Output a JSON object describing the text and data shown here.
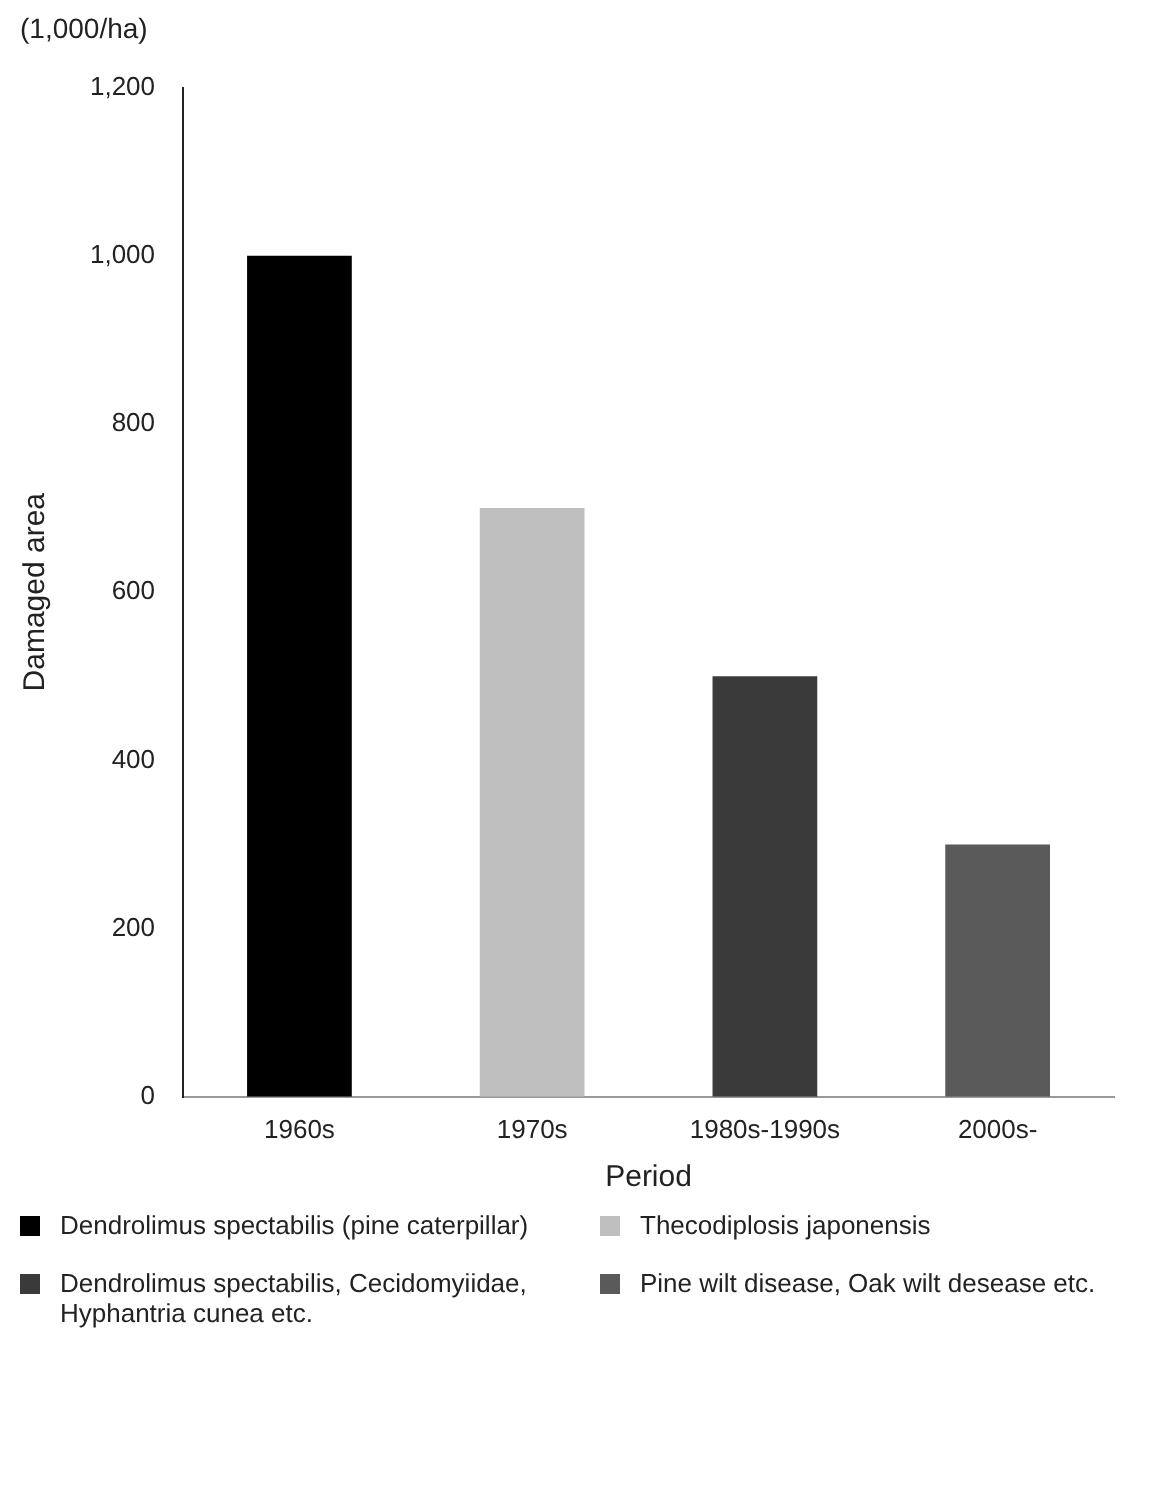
{
  "chart_data": {
    "type": "bar",
    "xlabel": "Period",
    "ylabel": "Damaged area",
    "annotations": [
      "(1,000/ha)"
    ],
    "categories": [
      "1960s",
      "1970s",
      "1980s-1990s",
      "2000s-"
    ],
    "series": [
      {
        "name": "Dendrolimus spectabilis (pine caterpillar)",
        "color": "#000000",
        "values": [
          1000,
          null,
          null,
          null
        ]
      },
      {
        "name": "Thecodiplosis japonensis",
        "color": "#bfbfbf",
        "values": [
          null,
          700,
          null,
          null
        ]
      },
      {
        "name": "Dendrolimus spectabilis, Cecidomyiidae, Hyphantria cunea etc.",
        "color": "#3a3a3a",
        "values": [
          null,
          null,
          500,
          null
        ]
      },
      {
        "name": "Pine wilt disease, Oak wilt desease etc.",
        "color": "#5a5a5a",
        "values": [
          null,
          null,
          null,
          300
        ]
      }
    ],
    "ylim": [
      0,
      1200
    ],
    "yticks": [
      0,
      200,
      400,
      600,
      800,
      {
        "value": 1000,
        "label": "1,000"
      },
      {
        "value": 1200,
        "label": "1,200"
      }
    ],
    "grid": false,
    "legend": "bottom"
  }
}
